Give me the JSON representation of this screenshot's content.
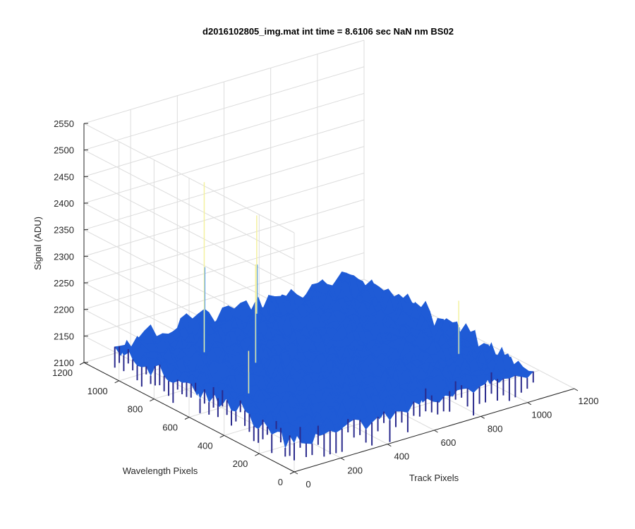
{
  "chart_data": {
    "type": "surface",
    "title": "d2016102805_img.mat int time = 8.6106 sec  NaN nm BS02",
    "xlabel": "Track Pixels",
    "ylabel": "Wavelength Pixels",
    "zlabel": "Signal (ADU)",
    "xlim": [
      0,
      1200
    ],
    "ylim": [
      0,
      1200
    ],
    "zlim": [
      2100,
      2550
    ],
    "x_ticks": [
      "0",
      "200",
      "400",
      "600",
      "800",
      "1000",
      "1200"
    ],
    "y_ticks": [
      "0",
      "200",
      "400",
      "600",
      "800",
      "1000",
      "1200"
    ],
    "z_ticks": [
      "2100",
      "2150",
      "2200",
      "2250",
      "2300",
      "2350",
      "2400",
      "2450",
      "2500",
      "2550"
    ],
    "grid": true,
    "colormap": "parula",
    "surface_extent": {
      "x": [
        0,
        1024
      ],
      "y": [
        0,
        1024
      ]
    },
    "baseline_level": 2160,
    "noise_range": [
      2110,
      2205
    ],
    "spikes": [
      {
        "x": 215,
        "y": 800,
        "z": 2480
      },
      {
        "x": 300,
        "y": 620,
        "z": 2345
      },
      {
        "x": 560,
        "y": 960,
        "z": 2345
      },
      {
        "x": 900,
        "y": 260,
        "z": 2260
      },
      {
        "x": 120,
        "y": 420,
        "z": 2240
      }
    ],
    "colors": {
      "surface_dark": "#2a2a8c",
      "surface_mid": "#1f5bd6",
      "surface_light": "#3a8ef0",
      "spike": "#f4f1a0",
      "axis": "#262626",
      "grid": "#dcdcdc"
    }
  }
}
